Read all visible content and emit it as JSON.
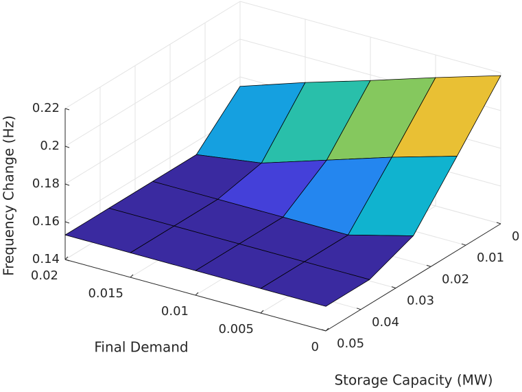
{
  "chart_data": {
    "type": "surface",
    "xlabel": "Final Demand",
    "ylabel": "Storage Capacity (MW)",
    "zlabel": "Frequency Change (Hz)",
    "x": [
      0,
      0.005,
      0.01,
      0.015,
      0.02
    ],
    "y": [
      0,
      0.0125,
      0.025,
      0.0375,
      0.05
    ],
    "z": [
      [
        0.2185,
        0.208,
        0.197,
        0.1865,
        0.175
      ],
      [
        0.19,
        0.18,
        0.169,
        0.158,
        0.153
      ],
      [
        0.162,
        0.153,
        0.153,
        0.153,
        0.153
      ],
      [
        0.153,
        0.153,
        0.153,
        0.153,
        0.153
      ],
      [
        0.153,
        0.153,
        0.153,
        0.153,
        0.153
      ]
    ],
    "xlim": [
      0,
      0.02
    ],
    "xticks": [
      0,
      0.005,
      0.01,
      0.015,
      0.02
    ],
    "ylim": [
      0,
      0.05
    ],
    "yticks": [
      0,
      0.01,
      0.02,
      0.03,
      0.04,
      0.05
    ],
    "zlim": [
      0.14,
      0.22
    ],
    "zticks": [
      0.14,
      0.16,
      0.18,
      0.2,
      0.22
    ],
    "colormap": "parula",
    "grid": true
  }
}
